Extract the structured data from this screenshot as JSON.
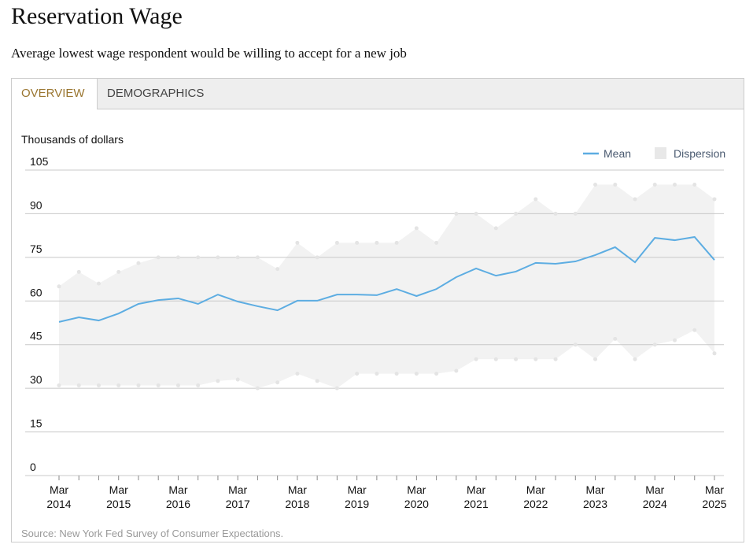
{
  "tabs": [
    "OVERVIEW",
    "DEMOGRAPHICS"
  ],
  "chart_data": {
    "type": "line",
    "title": "Reservation Wage",
    "subtitle": "Average lowest wage respondent would be willing to accept for a new job",
    "y_label": "Thousands of dollars",
    "source": "Source: New York Fed Survey of Consumer Expectations.",
    "categories": [
      "Mar 2014",
      null,
      null,
      "Mar 2015",
      null,
      null,
      "Mar 2016",
      null,
      null,
      "Mar 2017",
      null,
      null,
      "Mar 2018",
      null,
      null,
      "Mar 2019",
      null,
      null,
      "Mar 2020",
      null,
      null,
      "Mar 2021",
      null,
      null,
      "Mar 2022",
      null,
      null,
      "Mar 2023",
      null,
      null,
      "Mar 2024",
      null,
      null,
      "Mar 2025"
    ],
    "ylim": [
      0,
      105
    ],
    "yticks": [
      0,
      15,
      30,
      45,
      60,
      75,
      90,
      105
    ],
    "grid": true,
    "legend": "top-right",
    "series": [
      {
        "name": "Mean",
        "color": "#5dade2",
        "values": [
          52.8,
          54.4,
          53.3,
          55.7,
          59.0,
          60.3,
          60.9,
          59.0,
          62.2,
          59.8,
          58.2,
          56.8,
          60.1,
          60.1,
          62.2,
          62.2,
          62.0,
          64.1,
          61.7,
          64.1,
          68.2,
          71.2,
          68.7,
          70.1,
          73.1,
          72.8,
          73.6,
          75.8,
          78.5,
          73.3,
          81.7,
          80.9,
          82.0,
          74.1
        ]
      },
      {
        "name": "Dispersion",
        "color": "#f2f2f2",
        "high": [
          65,
          70,
          66,
          70,
          73,
          75,
          75,
          75,
          75,
          75,
          75,
          71,
          80,
          75,
          80,
          80,
          80,
          80,
          85,
          80,
          90,
          90,
          85,
          90,
          95,
          90,
          90,
          100,
          100,
          95,
          100,
          100,
          100,
          95
        ],
        "low": [
          31,
          31,
          31,
          31,
          31,
          31,
          31,
          31,
          32.5,
          33,
          30,
          32,
          35,
          32.5,
          30,
          35,
          35,
          35,
          35,
          35,
          36,
          40,
          40,
          40,
          40,
          40,
          45,
          40,
          47,
          40,
          45,
          46.5,
          50,
          42
        ]
      }
    ]
  }
}
